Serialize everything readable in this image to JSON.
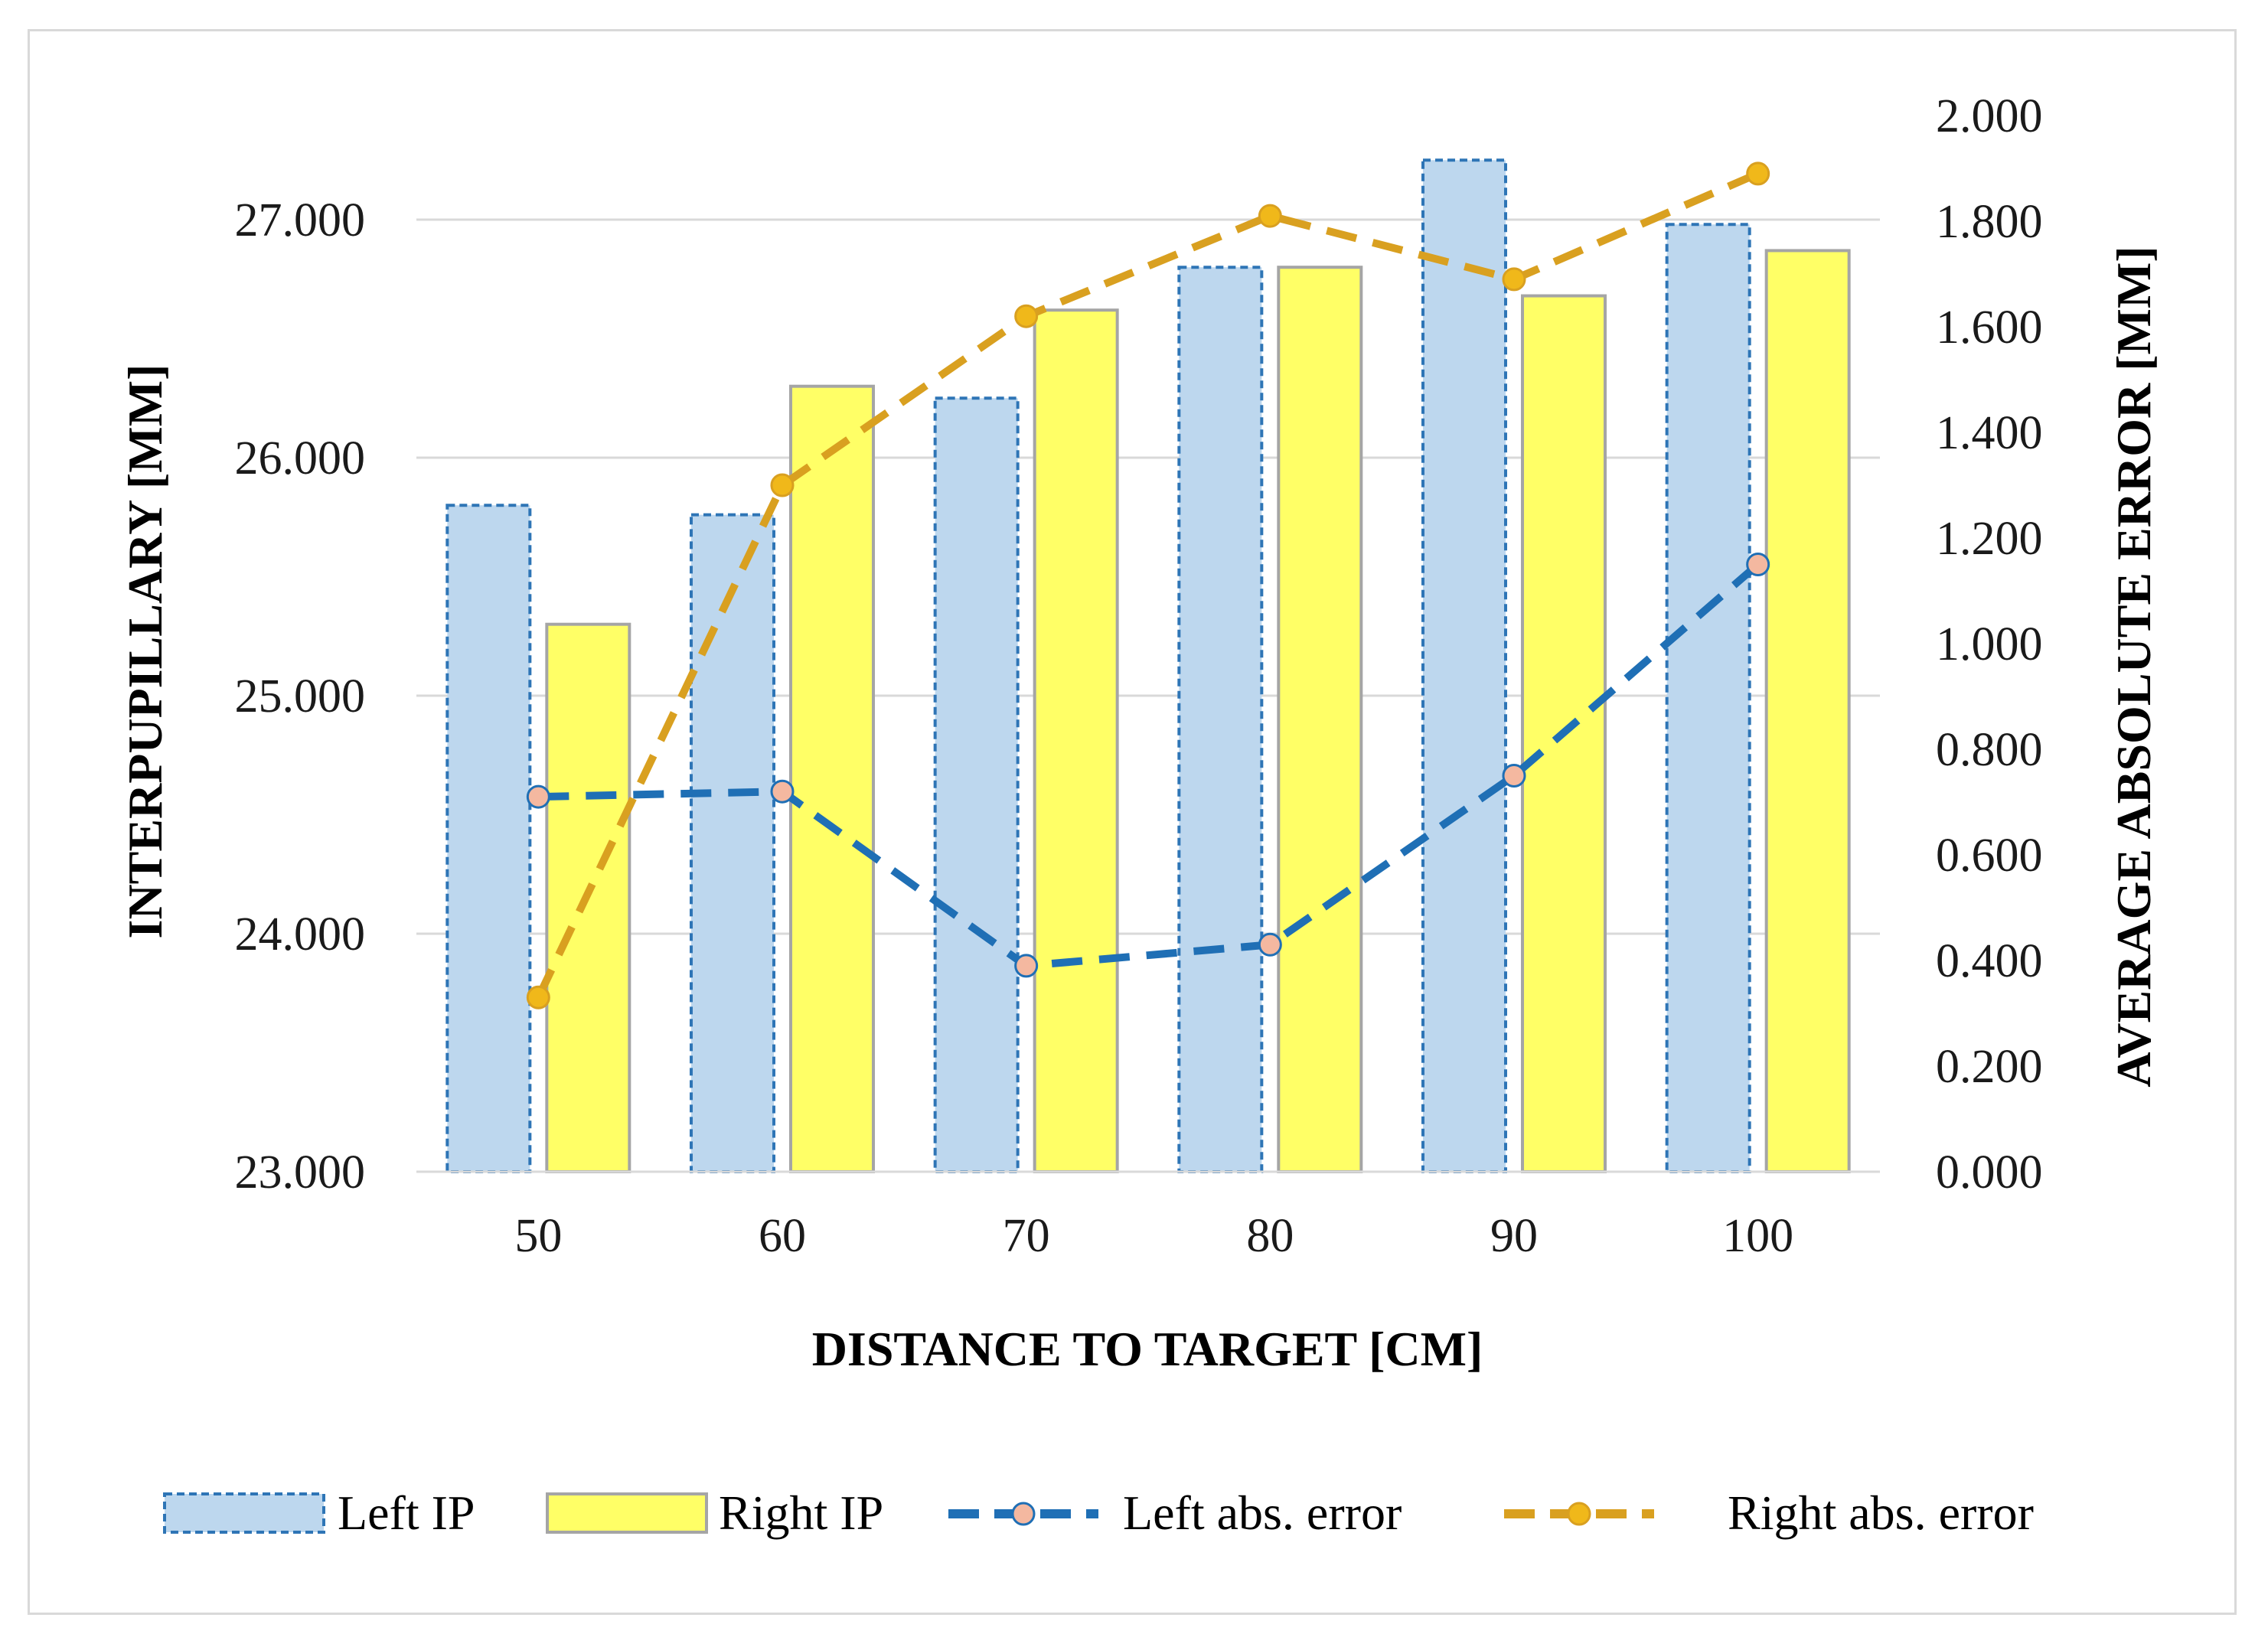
{
  "chart_data": {
    "type": "bar",
    "categories": [
      "50",
      "60",
      "70",
      "80",
      "90",
      "100"
    ],
    "xlabel": "DISTANCE TO TARGET [CM]",
    "ylabel": "INTERPUPILLARY [MM]",
    "y2label": "AVERAGE ABSOLUTE ERROR [MM]",
    "ylim": [
      23,
      27.5
    ],
    "y2lim": [
      0,
      2
    ],
    "yticks": [
      "23.000",
      "24.000",
      "25.000",
      "26.000",
      "27.000"
    ],
    "y2ticks": [
      "0.000",
      "0.200",
      "0.400",
      "0.600",
      "0.800",
      "1.000",
      "1.200",
      "1.400",
      "1.600",
      "1.800",
      "2.000"
    ],
    "grid": true,
    "legend_position": "bottom",
    "series": [
      {
        "name": "Left IP",
        "kind": "bar",
        "axis": "left",
        "values": [
          25.8,
          25.76,
          26.25,
          26.8,
          27.25,
          26.98
        ],
        "color": "#bdd7ee",
        "stroke": "#2e75b6"
      },
      {
        "name": "Right IP",
        "kind": "bar",
        "axis": "left",
        "values": [
          25.3,
          26.3,
          26.62,
          26.8,
          26.68,
          26.87
        ],
        "color": "#ffff66",
        "stroke": "#a5a5a5"
      },
      {
        "name": "Left abs. error",
        "kind": "line",
        "axis": "right",
        "values": [
          0.71,
          0.72,
          0.39,
          0.43,
          0.75,
          1.15
        ],
        "color": "#1f6fb5",
        "marker": "#f4b8a0"
      },
      {
        "name": "Right abs. error",
        "kind": "line",
        "axis": "right",
        "values": [
          0.33,
          1.3,
          1.62,
          1.81,
          1.69,
          1.89
        ],
        "color": "#d9a020",
        "marker": "#f0b81a"
      }
    ]
  }
}
